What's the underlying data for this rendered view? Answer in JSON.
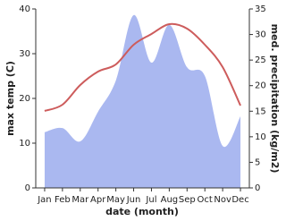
{
  "chart_data": {
    "type": "combo",
    "xlabel": "date (month)",
    "ylabel": "max temp (C)",
    "y2label": "med. precipitation (kg/m2)",
    "categories": [
      "Jan",
      "Feb",
      "Mar",
      "Apr",
      "May",
      "Jun",
      "Jul",
      "Aug",
      "Sep",
      "Oct",
      "Nov",
      "Dec"
    ],
    "series": [
      {
        "name": "max temp",
        "type": "line",
        "color": "#cd5c5c",
        "axis": "y",
        "values": [
          17.2,
          18.6,
          23,
          26,
          27.6,
          32,
          34.4,
          36.6,
          35.6,
          32,
          27,
          18.4
        ]
      },
      {
        "name": "med. precipitation",
        "type": "area",
        "color": "#aab8f0",
        "axis": "y2",
        "values": [
          10.9,
          11.7,
          9.1,
          14.9,
          21,
          33.8,
          24.5,
          31.9,
          23.6,
          21.9,
          8.2,
          14
        ]
      }
    ],
    "ylim": [
      0,
      40
    ],
    "yticks": [
      0,
      10,
      20,
      30,
      40
    ],
    "y2lim": [
      0,
      35
    ],
    "y2ticks": [
      0,
      5,
      10,
      15,
      20,
      25,
      30,
      35
    ]
  }
}
